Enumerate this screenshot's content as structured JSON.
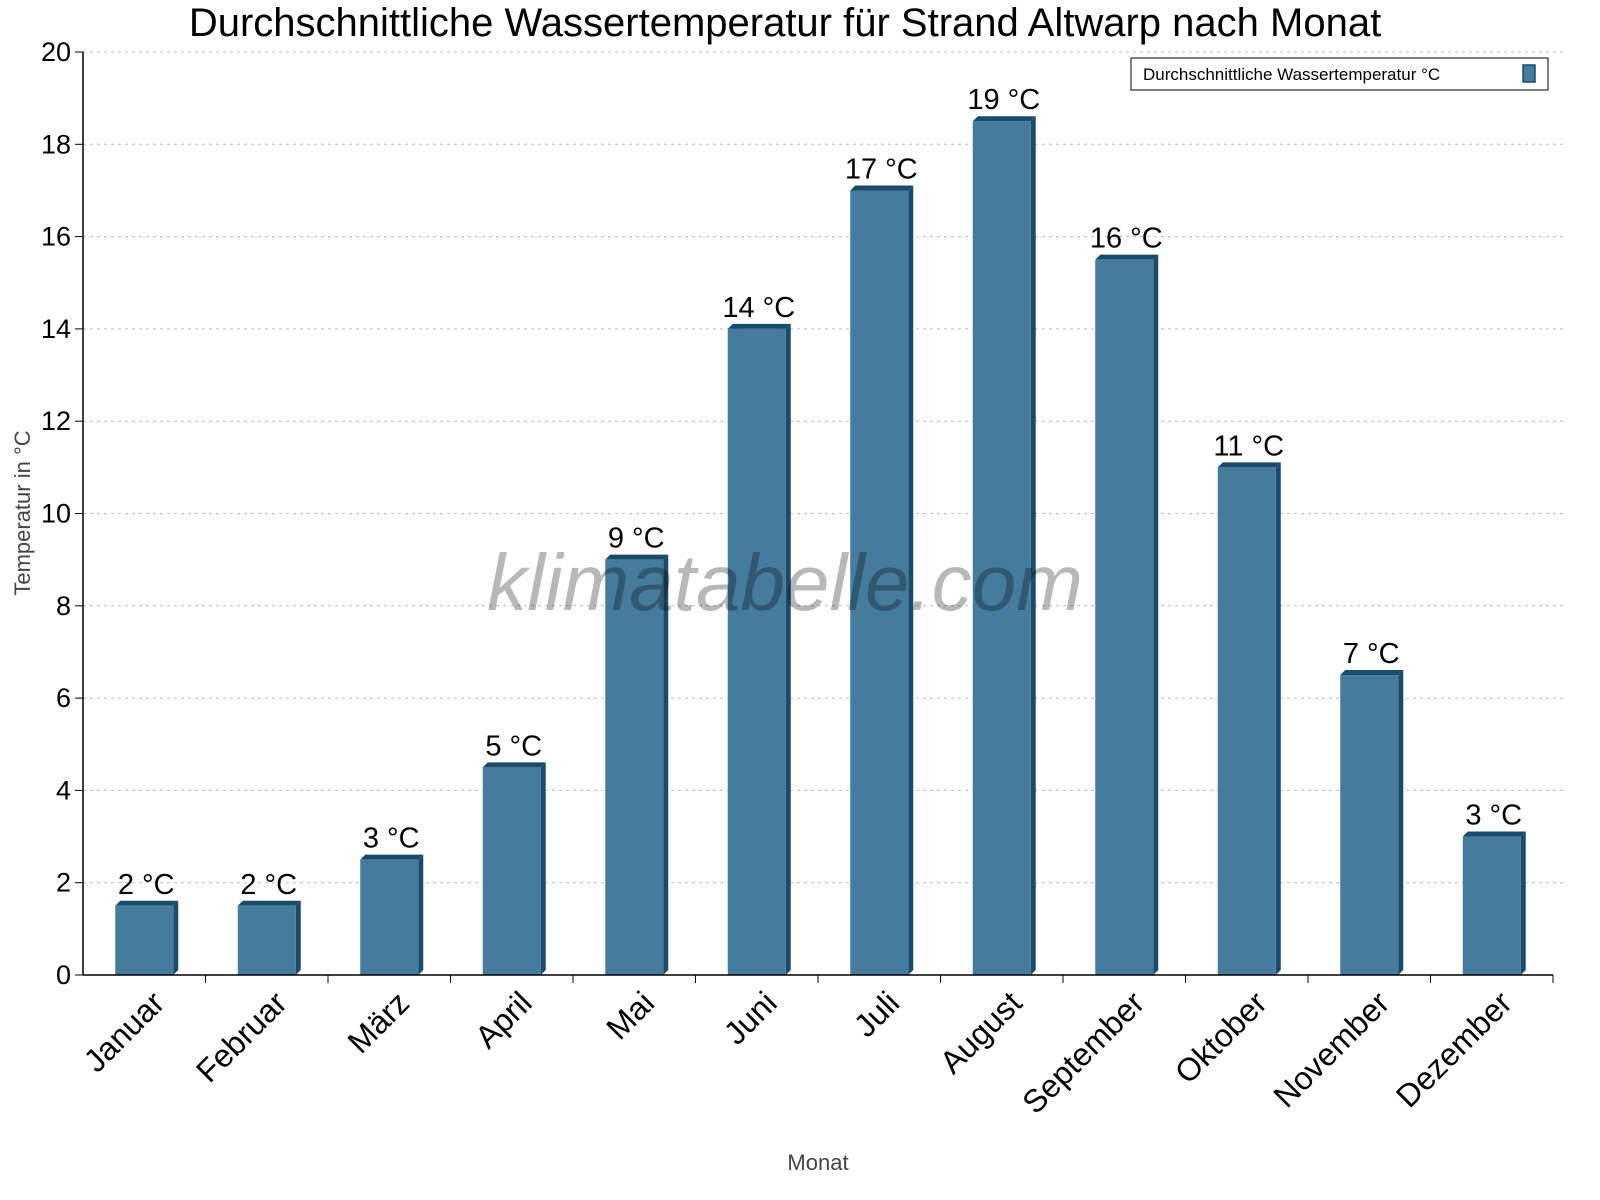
{
  "chart_data": {
    "type": "bar",
    "title": "Durchschnittliche Wassertemperatur für Strand Altwarp nach Monat",
    "xlabel": "Monat",
    "ylabel": "Temperatur in °C",
    "ylim": [
      0,
      20
    ],
    "yticks": [
      0,
      2,
      4,
      6,
      8,
      10,
      12,
      14,
      16,
      18,
      20
    ],
    "grid": true,
    "legend_position": "top-right",
    "categories": [
      "Januar",
      "Februar",
      "März",
      "April",
      "Mai",
      "Juni",
      "Juli",
      "August",
      "September",
      "Oktober",
      "November",
      "Dezember"
    ],
    "series": [
      {
        "name": "Durchschnittliche Wassertemperatur °C",
        "values": [
          1.5,
          1.5,
          2.5,
          4.5,
          9,
          14,
          17,
          18.5,
          15.5,
          11,
          6.5,
          3
        ],
        "data_labels": [
          "2 °C",
          "2 °C",
          "3 °C",
          "5 °C",
          "9 °C",
          "14 °C",
          "17 °C",
          "19 °C",
          "16 °C",
          "11 °C",
          "7 °C",
          "3 °C"
        ],
        "color": "#457b9d",
        "shade_color": "#1b4b6b"
      }
    ],
    "watermark": "klimatabelle.com"
  }
}
